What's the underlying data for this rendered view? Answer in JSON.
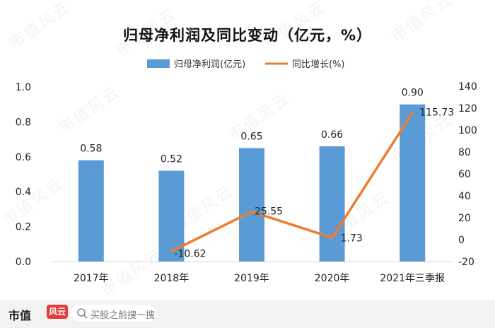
{
  "title": "归母净利润及同比变动（亿元，%）",
  "legend": {
    "bar_label": "归母净利润(亿元)",
    "line_label": "同比增长(%)"
  },
  "colors": {
    "bar": "#5b9bd5",
    "line": "#ed7d31"
  },
  "watermark": "市值风云",
  "footer": {
    "brand": "市值",
    "brand_mark": "风云",
    "search_text": "买股之前搜一搜"
  },
  "chart_data": {
    "type": "bar",
    "categories": [
      "2017年",
      "2018年",
      "2019年",
      "2020年",
      "2021年三季报"
    ],
    "series": [
      {
        "name": "归母净利润(亿元)",
        "type": "bar",
        "axis": "left",
        "values": [
          0.58,
          0.52,
          0.65,
          0.66,
          0.9
        ]
      },
      {
        "name": "同比增长(%)",
        "type": "line",
        "axis": "right",
        "values": [
          null,
          -10.62,
          25.55,
          1.73,
          115.73
        ]
      }
    ],
    "bar_labels": [
      "0.58",
      "0.52",
      "0.65",
      "0.66",
      "0.90"
    ],
    "line_labels": [
      null,
      "-10.62",
      "25.55",
      "1.73",
      "115.73"
    ],
    "y_left": {
      "min": 0,
      "max": 1.0,
      "ticks": [
        "0.0",
        "0.2",
        "0.4",
        "0.6",
        "0.8",
        "1.0"
      ]
    },
    "y_right": {
      "min": -20,
      "max": 140,
      "ticks": [
        "-20",
        "0",
        "20",
        "40",
        "60",
        "80",
        "100",
        "120",
        "140"
      ]
    },
    "grid": false,
    "legend_position": "top"
  }
}
